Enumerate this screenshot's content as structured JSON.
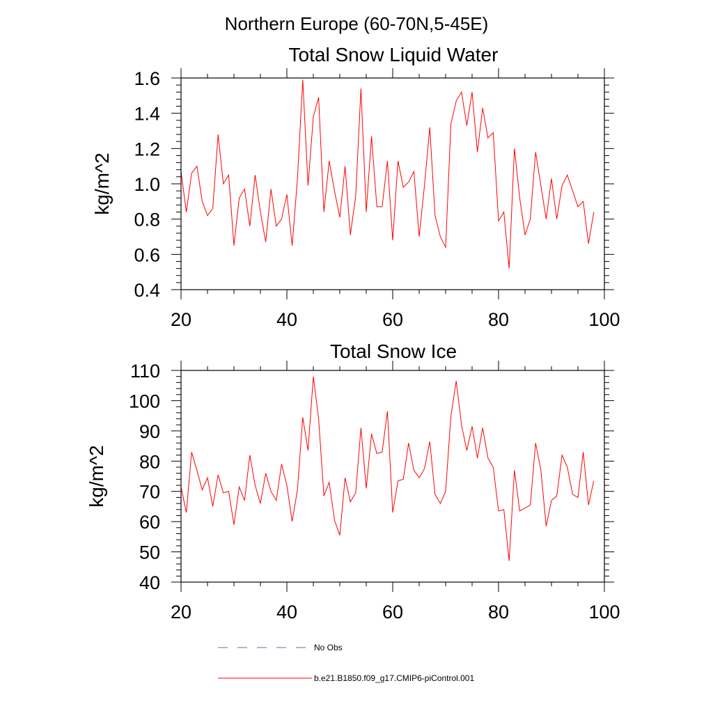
{
  "figure": {
    "suptitle": "Northern Europe (60-70N,5-45E)"
  },
  "chart_data": [
    {
      "type": "line",
      "title": "Total Snow Liquid Water",
      "xlabel": "",
      "ylabel": "kg/m^2",
      "xlim": [
        20,
        100
      ],
      "ylim": [
        0.4,
        1.6
      ],
      "xticks": [
        20,
        40,
        60,
        80,
        100
      ],
      "xtick_labels": [
        "20",
        "40",
        "60",
        "80",
        "100"
      ],
      "yticks": [
        0.4,
        0.6,
        0.8,
        1.0,
        1.2,
        1.4,
        1.6
      ],
      "ytick_labels": [
        "0.4",
        "0.6",
        "0.8",
        "1.0",
        "1.2",
        "1.4",
        "1.6"
      ],
      "series": [
        {
          "name": "b.e21.B1850.f09_g17.CMIP6-piControl.001",
          "color": "#ff0000",
          "x": [
            20,
            21,
            22,
            23,
            24,
            25,
            26,
            27,
            28,
            29,
            30,
            31,
            32,
            33,
            34,
            35,
            36,
            37,
            38,
            39,
            40,
            41,
            42,
            43,
            44,
            45,
            46,
            47,
            48,
            49,
            50,
            51,
            52,
            53,
            54,
            55,
            56,
            57,
            58,
            59,
            60,
            61,
            62,
            63,
            64,
            65,
            66,
            67,
            68,
            69,
            70,
            71,
            72,
            73,
            74,
            75,
            76,
            77,
            78,
            79,
            80,
            81,
            82,
            83,
            84,
            85,
            86,
            87,
            88,
            89,
            90,
            91,
            92,
            93,
            94,
            95,
            96,
            97,
            98
          ],
          "values": [
            1.07,
            0.84,
            1.06,
            1.1,
            0.9,
            0.82,
            0.86,
            1.28,
            1.0,
            1.05,
            0.65,
            0.92,
            0.97,
            0.76,
            1.05,
            0.84,
            0.67,
            0.97,
            0.76,
            0.8,
            0.94,
            0.65,
            1.03,
            1.59,
            0.99,
            1.38,
            1.49,
            0.84,
            1.13,
            0.96,
            0.81,
            1.1,
            0.71,
            0.93,
            1.54,
            0.84,
            1.27,
            0.87,
            0.87,
            1.13,
            0.68,
            1.13,
            0.98,
            1.01,
            1.07,
            0.7,
            0.99,
            1.32,
            0.82,
            0.7,
            0.64,
            1.34,
            1.47,
            1.52,
            1.33,
            1.52,
            1.18,
            1.43,
            1.26,
            1.29,
            0.79,
            0.84,
            0.52,
            1.2,
            0.92,
            0.71,
            0.8,
            1.18,
            0.99,
            0.8,
            1.03,
            0.8,
            0.99,
            1.05,
            0.96,
            0.87,
            0.9,
            0.66,
            0.84
          ]
        }
      ]
    },
    {
      "type": "line",
      "title": "Total Snow Ice",
      "xlabel": "",
      "ylabel": "kg/m^2",
      "xlim": [
        20,
        100
      ],
      "ylim": [
        40,
        110
      ],
      "xticks": [
        20,
        40,
        60,
        80,
        100
      ],
      "xtick_labels": [
        "20",
        "40",
        "60",
        "80",
        "100"
      ],
      "yticks": [
        40,
        50,
        60,
        70,
        80,
        90,
        100,
        110
      ],
      "ytick_labels": [
        "40",
        "50",
        "60",
        "70",
        "80",
        "90",
        "100",
        "110"
      ],
      "series": [
        {
          "name": "b.e21.B1850.f09_g17.CMIP6-piControl.001",
          "color": "#ff0000",
          "x": [
            20,
            21,
            22,
            23,
            24,
            25,
            26,
            27,
            28,
            29,
            30,
            31,
            32,
            33,
            34,
            35,
            36,
            37,
            38,
            39,
            40,
            41,
            42,
            43,
            44,
            45,
            46,
            47,
            48,
            49,
            50,
            51,
            52,
            53,
            54,
            55,
            56,
            57,
            58,
            59,
            60,
            61,
            62,
            63,
            64,
            65,
            66,
            67,
            68,
            69,
            70,
            71,
            72,
            73,
            74,
            75,
            76,
            77,
            78,
            79,
            80,
            81,
            82,
            83,
            84,
            85,
            86,
            87,
            88,
            89,
            90,
            91,
            92,
            93,
            94,
            95,
            96,
            97,
            98
          ],
          "values": [
            71.5,
            63.0,
            83.0,
            77.0,
            70.5,
            74.5,
            65.0,
            75.5,
            69.5,
            70.0,
            59.0,
            71.5,
            67.0,
            82.0,
            72.0,
            66.0,
            76.0,
            70.0,
            67.0,
            79.0,
            72.0,
            60.0,
            70.5,
            94.5,
            83.5,
            108.0,
            94.0,
            68.5,
            73.0,
            60.5,
            55.5,
            74.5,
            66.5,
            69.5,
            91.0,
            71.0,
            89.0,
            82.5,
            83.0,
            96.5,
            63.0,
            73.5,
            74.0,
            86.0,
            77.0,
            74.5,
            77.5,
            86.5,
            69.0,
            66.0,
            70.0,
            95.0,
            106.5,
            92.0,
            83.5,
            91.5,
            81.0,
            91.0,
            81.0,
            78.0,
            63.5,
            64.0,
            47.0,
            77.0,
            63.5,
            64.5,
            65.5,
            86.0,
            77.0,
            58.5,
            67.0,
            68.5,
            82.0,
            78.0,
            69.0,
            68.0,
            83.0,
            65.5,
            73.5
          ]
        }
      ]
    }
  ],
  "legend": {
    "items": [
      {
        "label": "No Obs",
        "color": "#5b6fa6",
        "style": "dashed"
      },
      {
        "label": "b.e21.B1850.f09_g17.CMIP6-piControl.001",
        "color": "#ff0000",
        "style": "solid"
      }
    ]
  }
}
